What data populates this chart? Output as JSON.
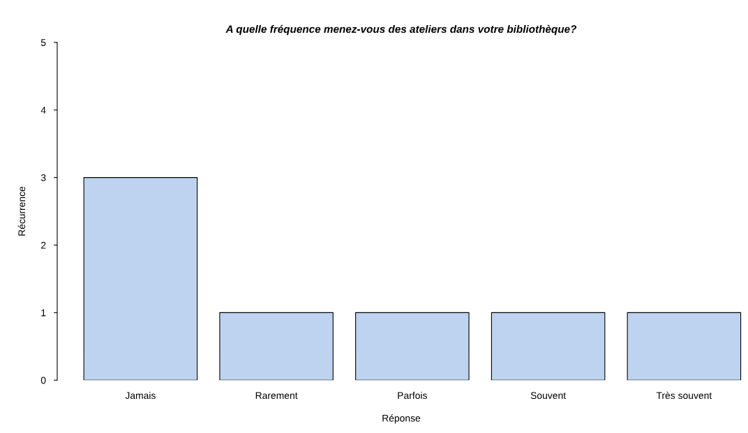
{
  "chart_data": {
    "type": "bar",
    "title": "A quelle fréquence menez-vous des ateliers dans votre bibliothèque?",
    "xlabel": "Réponse",
    "ylabel": "Récurrence",
    "categories": [
      "Jamais",
      "Rarement",
      "Parfois",
      "Souvent",
      "Très souvent"
    ],
    "values": [
      3,
      1,
      1,
      1,
      1
    ],
    "color": "#bdd3f0",
    "ylim": [
      0,
      5
    ],
    "yticks": [
      0,
      1,
      2,
      3,
      4,
      5
    ],
    "grid": false,
    "legend": false
  }
}
